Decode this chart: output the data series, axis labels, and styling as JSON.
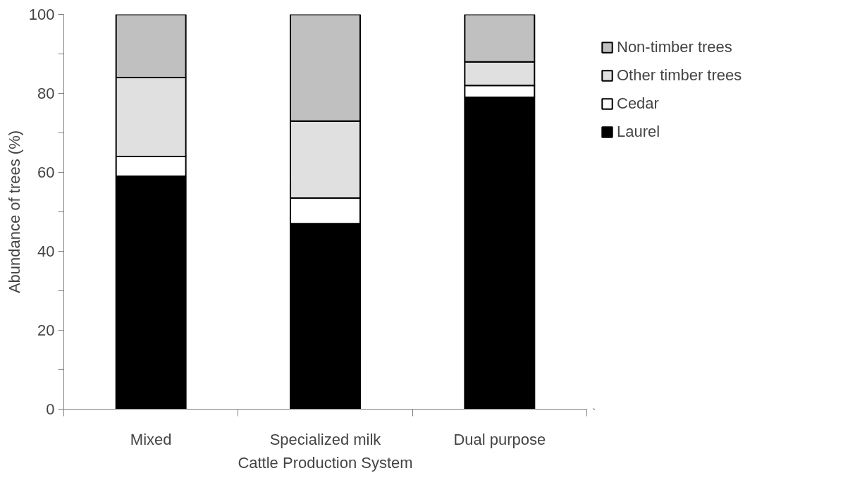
{
  "chart_data": {
    "type": "bar",
    "stacked": true,
    "xlabel": "Cattle Production System",
    "ylabel": "Abundance of trees (%)",
    "categories": [
      "Mixed",
      "Specialized milk",
      "Dual purpose"
    ],
    "series": [
      {
        "name": "Laurel",
        "color": "#000000",
        "values": [
          59,
          47,
          79
        ]
      },
      {
        "name": "Cedar",
        "color": "#ffffff",
        "values": [
          5,
          6.5,
          3
        ]
      },
      {
        "name": "Other timber trees",
        "color": "#e0e0e0",
        "values": [
          20,
          19.5,
          6
        ]
      },
      {
        "name": "Non-timber trees",
        "color": "#c0c0c0",
        "values": [
          16,
          27,
          12
        ]
      }
    ],
    "ylim": [
      0,
      100
    ],
    "yticks": [
      0,
      {
        "value": 10,
        "label": null
      },
      20,
      {
        "value": 30,
        "label": null
      },
      40,
      {
        "value": 50,
        "label": null
      },
      60,
      {
        "value": 70,
        "label": null
      },
      80,
      {
        "value": 90,
        "label": null
      },
      100
    ],
    "grid": false,
    "legend": "right"
  }
}
